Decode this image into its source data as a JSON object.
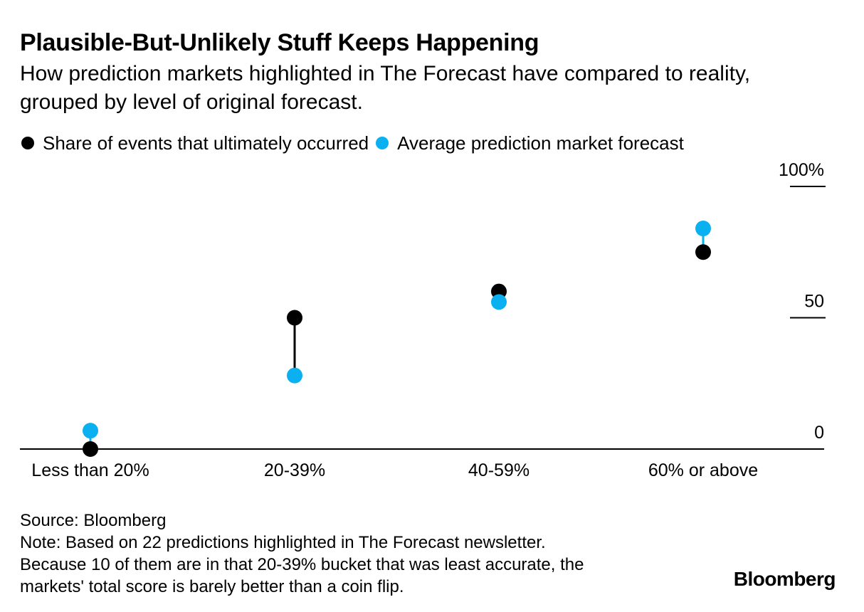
{
  "header": {
    "title": "Plausible-But-Unlikely Stuff Keeps Happening",
    "subtitle": "How prediction markets highlighted in The Forecast have compared to reality, grouped by level of original forecast."
  },
  "legend": {
    "occurred_label": "Share of events that ultimately occurred",
    "forecast_label": "Average prediction market forecast"
  },
  "colors": {
    "occurred": "#000000",
    "forecast": "#0ab0f0"
  },
  "chart_data": {
    "type": "scatter",
    "categories": [
      "Less than 20%",
      "20-39%",
      "40-59%",
      "60% or above"
    ],
    "series": [
      {
        "name": "Share of events that ultimately occurred",
        "values": [
          0,
          50,
          60,
          75
        ]
      },
      {
        "name": "Average prediction market forecast",
        "values": [
          7,
          28,
          56,
          84
        ]
      }
    ],
    "y_ticks": [
      {
        "value": 0,
        "label": "0"
      },
      {
        "value": 50,
        "label": "50"
      },
      {
        "value": 100,
        "label": "100%"
      }
    ],
    "ylim": [
      0,
      100
    ],
    "y_axis_side": "right",
    "legend_position": "top-left"
  },
  "footer": {
    "source": "Source: Bloomberg",
    "note_lines": [
      "Note: Based on 22 predictions highlighted in The Forecast newsletter.",
      "Because 10 of them are in that 20-39% bucket that was least accurate, the",
      "markets' total score is barely better than a coin flip."
    ],
    "brand": "Bloomberg"
  }
}
